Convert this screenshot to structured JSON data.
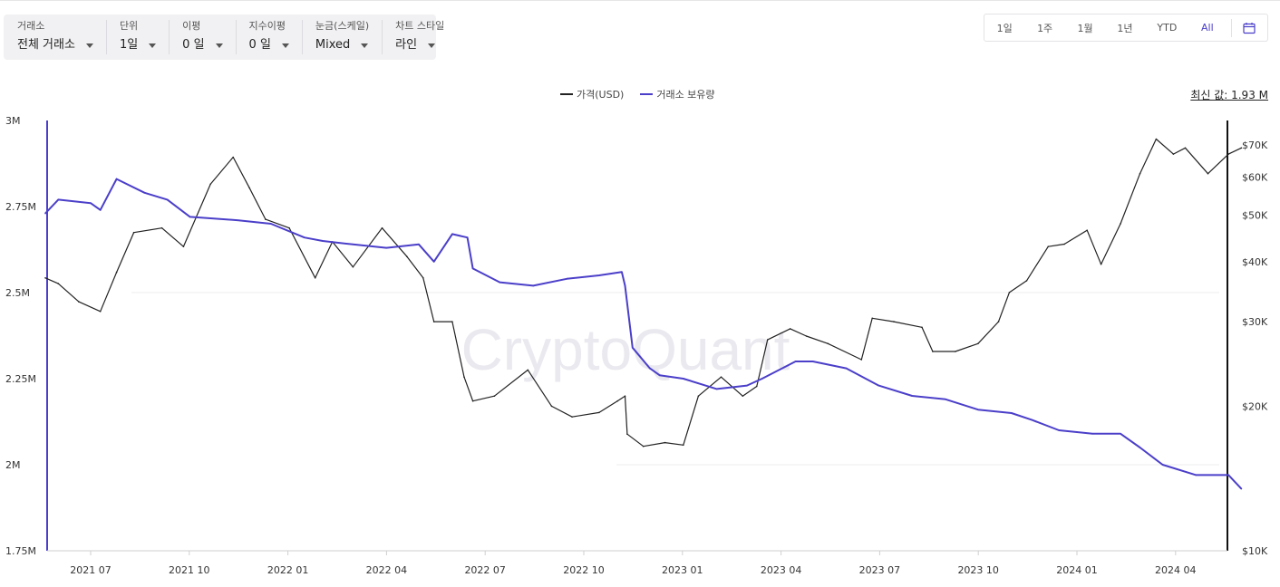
{
  "toolbar": [
    {
      "label": "거래소",
      "value": "전체 거래소"
    },
    {
      "label": "단위",
      "value": "1일"
    },
    {
      "label": "이평",
      "value": "0 일"
    },
    {
      "label": "지수이평",
      "value": "0 일"
    },
    {
      "label": "눈금(스케일)",
      "value": "Mixed"
    },
    {
      "label": "차트 스타일",
      "value": "라인"
    }
  ],
  "ranges": [
    "1일",
    "1주",
    "1월",
    "1년",
    "YTD",
    "All"
  ],
  "active_range": "All",
  "latest_value": "최신 값: 1.93 M",
  "watermark": "CryptoQuant",
  "colors": {
    "price": "#222222",
    "reserve": "#4b3fc9",
    "active": "#4a3fc9"
  },
  "icons": {
    "dropdown": "caret-down-icon",
    "calendar": "calendar-icon"
  },
  "chart_data": {
    "type": "line",
    "x_ticks": [
      "2021 07",
      "2021 10",
      "2022 01",
      "2022 04",
      "2022 07",
      "2022 10",
      "2023 01",
      "2023 04",
      "2023 07",
      "2023 10",
      "2024 01",
      "2024 04"
    ],
    "y_left_ticks": [
      "3M",
      "2.75M",
      "2.5M",
      "2.25M",
      "2M",
      "1.75M"
    ],
    "y_right_ticks": [
      "$70K",
      "$60K",
      "$50K",
      "$40K",
      "$30K",
      "$20K",
      "$10K"
    ],
    "y_left_range": [
      1.75,
      3.0
    ],
    "y_right_range": [
      10000,
      75000
    ],
    "y_right_scale": "log",
    "legend_position": "top-center",
    "series": [
      {
        "name": "가격(USD)",
        "axis": "right",
        "x": [
          "2021-05-20",
          "2021-06-01",
          "2021-06-20",
          "2021-07-10",
          "2021-07-25",
          "2021-08-10",
          "2021-09-05",
          "2021-09-25",
          "2021-10-20",
          "2021-11-10",
          "2021-11-25",
          "2021-12-10",
          "2022-01-01",
          "2022-01-25",
          "2022-02-10",
          "2022-03-01",
          "2022-03-28",
          "2022-04-20",
          "2022-05-05",
          "2022-05-15",
          "2022-06-01",
          "2022-06-12",
          "2022-06-20",
          "2022-07-10",
          "2022-08-10",
          "2022-09-01",
          "2022-09-20",
          "2022-10-15",
          "2022-11-01",
          "2022-11-08",
          "2022-11-10",
          "2022-11-25",
          "2022-12-15",
          "2023-01-01",
          "2023-01-15",
          "2023-02-05",
          "2023-02-25",
          "2023-03-10",
          "2023-03-20",
          "2023-04-10",
          "2023-04-25",
          "2023-05-15",
          "2023-06-15",
          "2023-06-25",
          "2023-07-15",
          "2023-08-10",
          "2023-08-20",
          "2023-09-10",
          "2023-10-01",
          "2023-10-20",
          "2023-10-30",
          "2023-11-15",
          "2023-12-05",
          "2023-12-20",
          "2024-01-10",
          "2024-01-23",
          "2024-02-10",
          "2024-02-28",
          "2024-03-14",
          "2024-03-30",
          "2024-04-10",
          "2024-05-01",
          "2024-05-20",
          "2024-06-01"
        ],
        "values": [
          37000,
          36000,
          33000,
          31500,
          38000,
          46000,
          47000,
          43000,
          58000,
          66000,
          57000,
          49000,
          47000,
          37000,
          44000,
          39000,
          47000,
          41000,
          37000,
          30000,
          30000,
          23000,
          20500,
          21000,
          23800,
          20000,
          19000,
          19400,
          20500,
          21000,
          17500,
          16500,
          16800,
          16600,
          21000,
          23000,
          21000,
          22000,
          27500,
          29000,
          28000,
          27000,
          25000,
          30500,
          30000,
          29200,
          26000,
          26000,
          27000,
          30000,
          34500,
          36500,
          43000,
          43500,
          46500,
          39500,
          48000,
          61000,
          72000,
          67000,
          69000,
          61000,
          67000,
          69000
        ]
      },
      {
        "name": "거래소 보유량",
        "axis": "left",
        "x": [
          "2021-05-20",
          "2021-06-01",
          "2021-07-01",
          "2021-07-10",
          "2021-07-25",
          "2021-08-20",
          "2021-09-10",
          "2021-10-01",
          "2021-11-15",
          "2021-12-15",
          "2022-01-15",
          "2022-02-01",
          "2022-03-01",
          "2022-04-01",
          "2022-05-01",
          "2022-05-15",
          "2022-06-01",
          "2022-06-15",
          "2022-06-20",
          "2022-07-15",
          "2022-08-15",
          "2022-09-15",
          "2022-10-15",
          "2022-11-05",
          "2022-11-08",
          "2022-11-15",
          "2022-12-01",
          "2022-12-10",
          "2023-01-01",
          "2023-02-01",
          "2023-03-01",
          "2023-03-15",
          "2023-04-15",
          "2023-05-01",
          "2023-06-01",
          "2023-07-01",
          "2023-08-01",
          "2023-09-01",
          "2023-10-01",
          "2023-11-01",
          "2023-11-20",
          "2023-12-15",
          "2024-01-15",
          "2024-02-10",
          "2024-02-28",
          "2024-03-20",
          "2024-04-20",
          "2024-05-20",
          "2024-06-01"
        ],
        "values": [
          2.73,
          2.77,
          2.76,
          2.74,
          2.83,
          2.79,
          2.77,
          2.72,
          2.71,
          2.7,
          2.66,
          2.65,
          2.64,
          2.63,
          2.64,
          2.59,
          2.67,
          2.66,
          2.57,
          2.53,
          2.52,
          2.54,
          2.55,
          2.56,
          2.52,
          2.34,
          2.28,
          2.26,
          2.25,
          2.22,
          2.23,
          2.25,
          2.3,
          2.3,
          2.28,
          2.23,
          2.2,
          2.19,
          2.16,
          2.15,
          2.13,
          2.1,
          2.09,
          2.09,
          2.05,
          2.0,
          1.97,
          1.97,
          1.93
        ]
      }
    ]
  }
}
